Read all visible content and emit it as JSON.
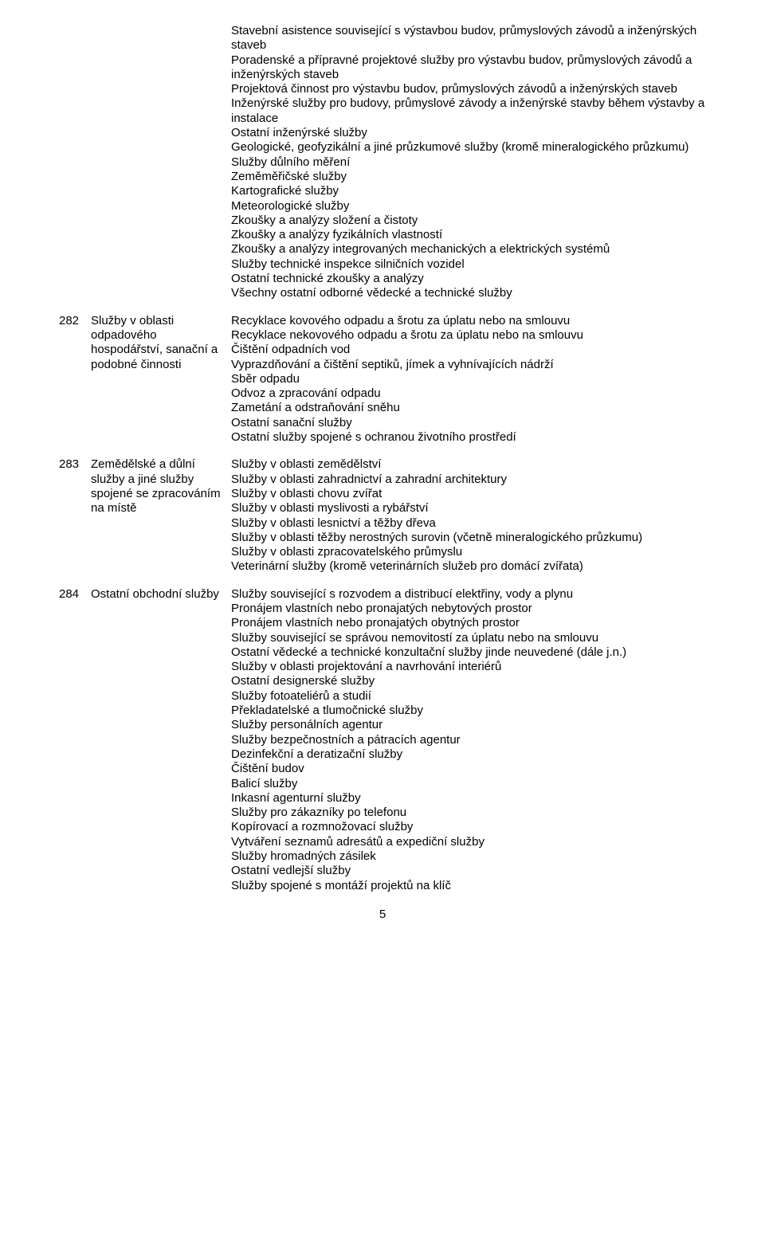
{
  "top": {
    "lines": [
      "Stavební asistence související s výstavbou budov, průmyslových závodů a inženýrských staveb",
      "Poradenské a přípravné projektové služby pro výstavbu budov, průmyslových závodů a inženýrských staveb",
      "Projektová činnost pro výstavbu budov, průmyslových závodů a inženýrských staveb",
      "Inženýrské služby pro budovy, průmyslové závody a inženýrské stavby během výstavby a instalace",
      "Ostatní inženýrské služby",
      "Geologické, geofyzikální a jiné průzkumové služby (kromě mineralogického průzkumu)",
      "Služby důlního měření",
      "Zeměměřičské služby",
      "Kartografické služby",
      "Meteorologické služby",
      "Zkoušky a analýzy složení a čistoty",
      "Zkoušky a analýzy fyzikálních vlastností",
      "Zkoušky a analýzy integrovaných mechanických a elektrických systémů",
      "Služby technické inspekce silničních vozidel",
      "Ostatní technické zkoušky a analýzy",
      "Všechny ostatní odborné vědecké a technické služby"
    ]
  },
  "sections": [
    {
      "num": "282",
      "title": "Služby v oblasti odpadového hospodářství, sanační a podobné činnosti",
      "lines": [
        "Recyklace kovového odpadu a šrotu za úplatu nebo na smlouvu",
        "Recyklace nekovového odpadu a šrotu za úplatu nebo na smlouvu",
        "Čištění odpadních vod",
        "Vyprazdňování a čištění septiků, jímek a vyhnívajících nádrží",
        "Sběr odpadu",
        "Odvoz a zpracování odpadu",
        "Zametání a odstraňování sněhu",
        "Ostatní sanační služby",
        "Ostatní služby spojené s ochranou životního prostředí"
      ]
    },
    {
      "num": "283",
      "title": "Zemědělské a důlní služby a jiné služby spojené se zpracováním na místě",
      "lines": [
        "Služby v oblasti zemědělství",
        "Služby v oblasti zahradnictví a zahradní architektury",
        "Služby v oblasti chovu zvířat",
        "Služby v oblasti myslivosti a rybářství",
        "Služby v oblasti lesnictví a těžby dřeva",
        "Služby v oblasti těžby nerostných surovin (včetně mineralogického průzkumu)",
        "Služby v oblasti zpracovatelského průmyslu",
        "Veterinární služby (kromě veterinárních služeb pro domácí zvířata)"
      ]
    },
    {
      "num": "284",
      "title": "Ostatní obchodní služby",
      "lines": [
        "Služby související s rozvodem a distribucí elektřiny, vody a plynu",
        "Pronájem vlastních nebo pronajatých nebytových prostor",
        "Pronájem vlastních nebo pronajatých obytných prostor",
        "Služby související se správou nemovitostí za úplatu nebo na smlouvu",
        "Ostatní vědecké a technické konzultační služby jinde neuvedené (dále j.n.)",
        "Služby v oblasti projektování a navrhování interiérů",
        "Ostatní designerské služby",
        "Služby fotoateliérů a studií",
        "Překladatelské a tlumočnické služby",
        "Služby personálních agentur",
        "Služby bezpečnostních a pátracích agentur",
        "Dezinfekční a deratizační služby",
        "Čištění budov",
        "Balicí služby",
        "Inkasní agenturní služby",
        "Služby pro zákazníky po telefonu",
        "Kopírovací a rozmnožovací služby",
        "Vytváření seznamů adresátů a expediční služby",
        "Služby hromadných zásilek",
        "Ostatní vedlejší služby",
        "Služby spojené s montáží projektů na klíč"
      ]
    }
  ],
  "page_number": "5"
}
